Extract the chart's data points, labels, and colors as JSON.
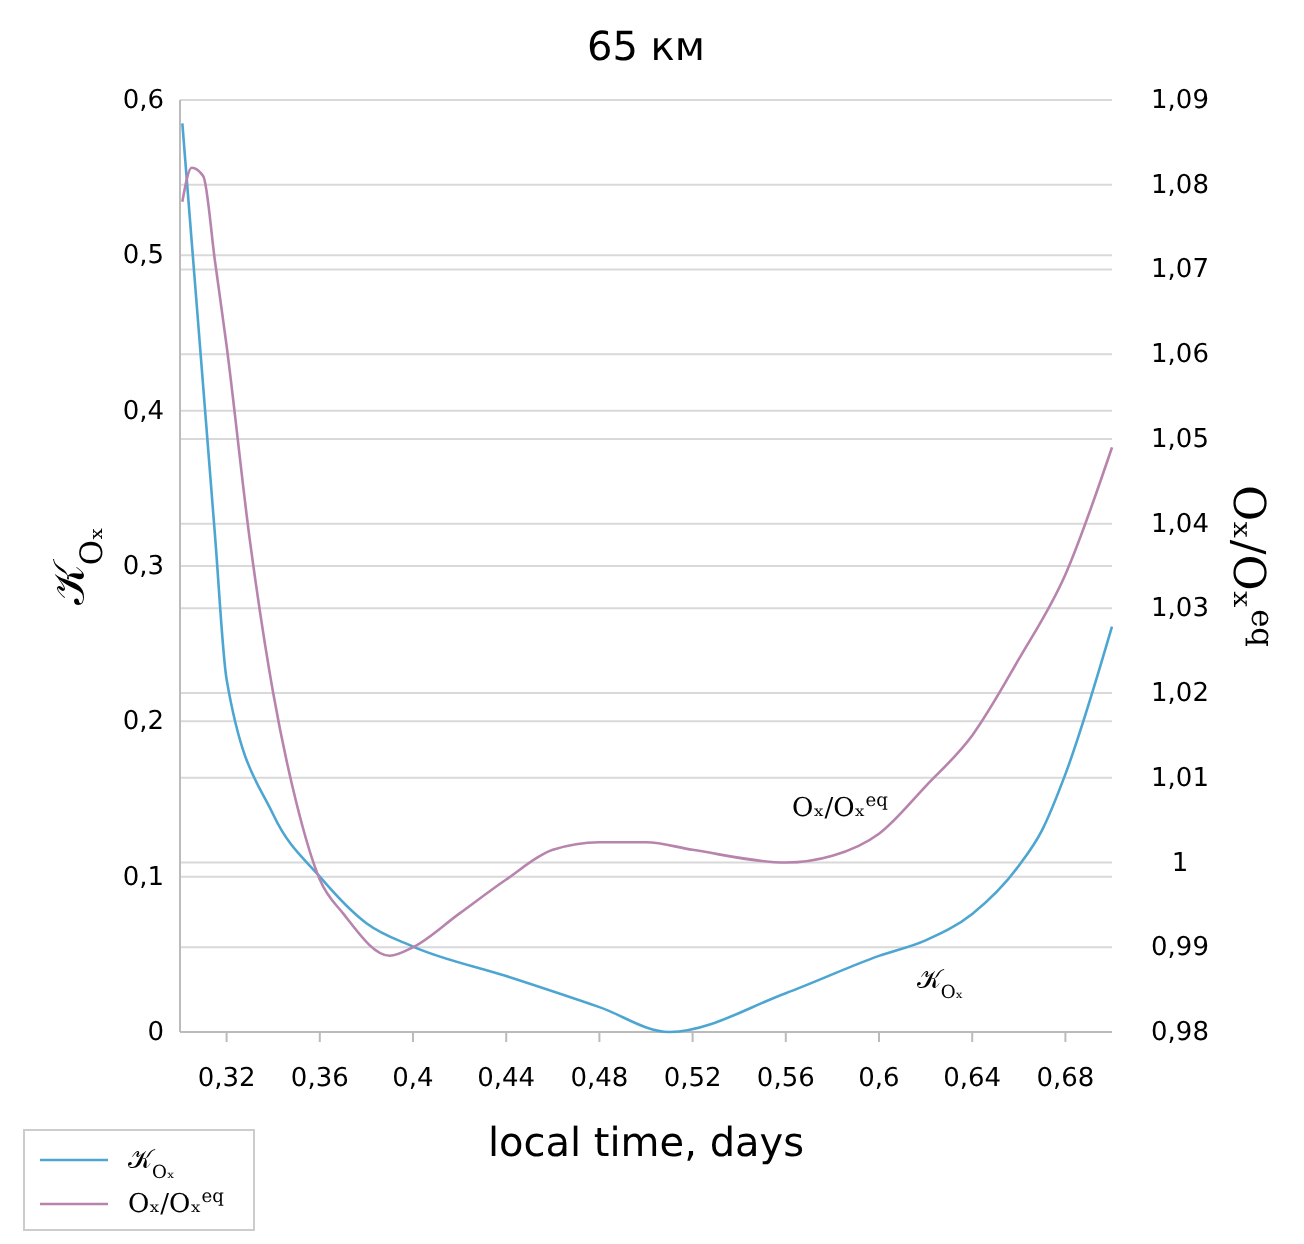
{
  "chart_data": {
    "type": "line",
    "title": "65 км",
    "xlabel": "local time, days",
    "ylabel": "𝒦$_{Oₓ}$",
    "y2label": "Oₓ/Oₓ$^{eq}$",
    "xlim": [
      0.3,
      0.7
    ],
    "xticks": [
      {
        "value": 0.32,
        "label": "0,32"
      },
      {
        "value": 0.36,
        "label": "0,36"
      },
      {
        "value": 0.4,
        "label": "0,4"
      },
      {
        "value": 0.44,
        "label": "0,44"
      },
      {
        "value": 0.48,
        "label": "0,48"
      },
      {
        "value": 0.52,
        "label": "0,52"
      },
      {
        "value": 0.56,
        "label": "0,56"
      },
      {
        "value": 0.6,
        "label": "0,6"
      },
      {
        "value": 0.64,
        "label": "0,64"
      },
      {
        "value": 0.68,
        "label": "0,68"
      }
    ],
    "ylim": [
      0,
      0.6
    ],
    "yticks": [
      0,
      {
        "value": 0.1,
        "label": "0,1"
      },
      {
        "value": 0.2,
        "label": "0,2"
      },
      {
        "value": 0.3,
        "label": "0,3"
      },
      {
        "value": 0.4,
        "label": "0,4"
      },
      {
        "value": 0.5,
        "label": "0,5"
      },
      {
        "value": 0.6,
        "label": "0,6"
      }
    ],
    "y2lim": [
      0.98,
      1.09
    ],
    "y2ticks": [
      {
        "value": 0.98,
        "label": "0,98"
      },
      {
        "value": 0.99,
        "label": "0,99"
      },
      1,
      {
        "value": 1.01,
        "label": "1,01"
      },
      {
        "value": 1.02,
        "label": "1,02"
      },
      {
        "value": 1.03,
        "label": "1,03"
      },
      {
        "value": 1.04,
        "label": "1,04"
      },
      {
        "value": 1.05,
        "label": "1,05"
      },
      {
        "value": 1.06,
        "label": "1,06"
      },
      {
        "value": 1.07,
        "label": "1,07"
      },
      {
        "value": 1.08,
        "label": "1,08"
      },
      {
        "value": 1.09,
        "label": "1,09"
      }
    ],
    "grid": "y",
    "legend": "bottom left",
    "marker": "none",
    "line_style": "solid",
    "series": [
      {
        "name": "𝒦$_{Oₓ}$",
        "color": "#4da6d1",
        "x": [
          0.301,
          0.315,
          0.32,
          0.34,
          0.36,
          0.38,
          0.4,
          0.44,
          0.48,
          0.51,
          0.56,
          0.6,
          0.62,
          0.64,
          0.66,
          0.67,
          0.68,
          0.7
        ],
        "values": [
          0.585,
          0.32,
          0.227,
          0.14,
          0.1,
          0.07,
          0.055,
          0.036,
          0.016,
          0,
          0.025,
          0.049,
          0.059,
          0.076,
          0.107,
          0.13,
          0.166,
          0.261
        ]
      },
      {
        "name": "Oₓ/Oₓ$^{eq}$",
        "color": "#b784ad",
        "axis": "y2",
        "x": [
          0.301,
          0.305,
          0.31,
          0.315,
          0.32,
          0.33,
          0.34,
          0.35,
          0.36,
          0.37,
          0.39,
          0.4,
          0.42,
          0.44,
          0.46,
          0.48,
          0.5,
          0.52,
          0.56,
          0.58,
          0.6,
          0.62,
          0.64,
          0.66,
          0.68,
          0.7
        ],
        "values": [
          1.078,
          1.082,
          1.081,
          1.071,
          1.061,
          1.038,
          1.02,
          1.007,
          0.998,
          0.994,
          0.989,
          0.99,
          0.994,
          0.998,
          1.0015,
          1.0024,
          1.0024,
          1.0015,
          1.0,
          1.0008,
          1.0034,
          1.009,
          1.015,
          1.024,
          1.034,
          1.049
        ]
      }
    ],
    "annotations": [
      "Oₓ/Oₓ$^{eq}$",
      "𝒦$_{Oₓ}$"
    ]
  }
}
